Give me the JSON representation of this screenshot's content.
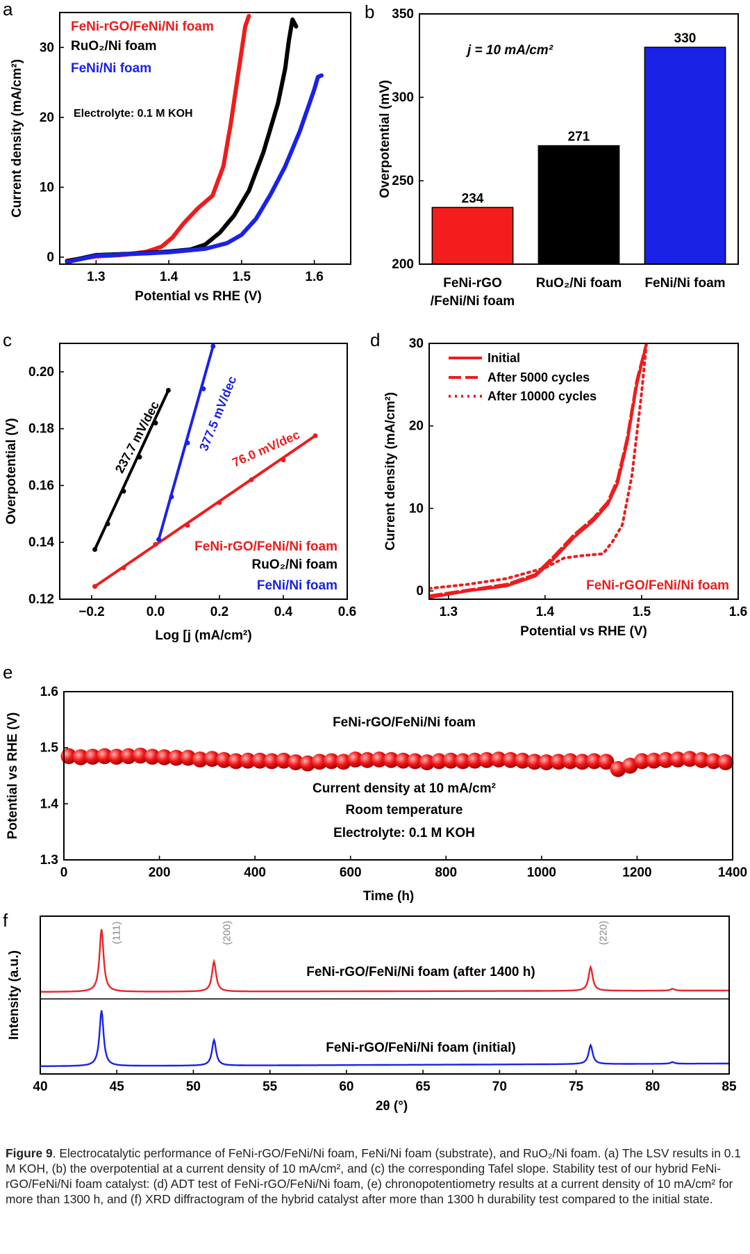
{
  "figure": {
    "caption_label": "Figure 9",
    "caption_text": ". Electrocatalytic performance of FeNi-rGO/FeNi/Ni foam, FeNi/Ni foam (substrate), and RuO₂/Ni foam. (a) The LSV results in 0.1 M KOH, (b) the overpotential at a current density of 10 mA/cm², and (c) the corresponding Tafel slope. Stability test of our hybrid FeNi-rGO/FeNi/Ni foam catalyst: (d) ADT test of FeNi-rGO/FeNi/Ni foam, (e) chronopotentiometry results at a current density of 10 mA/cm² for more than 1300 h, and (f) XRD diffractogram of the hybrid catalyst after more than 1300 h durability test compared to the initial state."
  },
  "chart_data": [
    {
      "panel": "a",
      "type": "line",
      "xlabel": "Potential vs RHE (V)",
      "ylabel": "Current density (mA/cm²)",
      "xlim": [
        1.25,
        1.65
      ],
      "ylim": [
        -1,
        35
      ],
      "xticks": [
        "1.3",
        "1.4",
        "1.5",
        "1.6"
      ],
      "yticks": [
        "0",
        "10",
        "20",
        "30"
      ],
      "annotations": [
        "Electrolyte: 0.1 M KOH"
      ],
      "legend_placement": "top-left",
      "series": [
        {
          "name": "FeNi-rGO/FeNi/Ni foam",
          "color": "#ee1c1c",
          "x": [
            1.26,
            1.3,
            1.34,
            1.37,
            1.39,
            1.405,
            1.42,
            1.44,
            1.46,
            1.475,
            1.485,
            1.495,
            1.505,
            1.51
          ],
          "y": [
            -0.5,
            0.1,
            0.35,
            0.8,
            1.5,
            2.8,
            4.8,
            7,
            8.8,
            13,
            19,
            26,
            33,
            34.5
          ]
        },
        {
          "name": "RuO₂/Ni foam",
          "color": "#000000",
          "x": [
            1.26,
            1.3,
            1.35,
            1.4,
            1.43,
            1.45,
            1.47,
            1.49,
            1.51,
            1.53,
            1.55,
            1.56,
            1.565,
            1.57,
            1.575
          ],
          "y": [
            -0.6,
            0.3,
            0.5,
            0.8,
            1.1,
            1.8,
            3.5,
            6,
            9.5,
            15,
            22,
            27,
            31,
            34,
            33
          ]
        },
        {
          "name": "FeNi/Ni foam",
          "color": "#1a22e6",
          "x": [
            1.26,
            1.3,
            1.4,
            1.45,
            1.48,
            1.5,
            1.52,
            1.54,
            1.56,
            1.58,
            1.59,
            1.6,
            1.605,
            1.61
          ],
          "y": [
            -0.7,
            0.2,
            0.7,
            1.2,
            2,
            3.2,
            5.5,
            9,
            13,
            18,
            21,
            24,
            25.8,
            26
          ]
        }
      ]
    },
    {
      "panel": "b",
      "type": "bar",
      "ylabel": "Overpotential (mV)",
      "ylim": [
        200,
        350
      ],
      "yticks": [
        "200",
        "250",
        "300",
        "350"
      ],
      "annotation": "j = 10 mA/cm²",
      "categories": [
        [
          "FeNi-rGO",
          "/FeNi/Ni foam"
        ],
        [
          "RuO₂/Ni foam"
        ],
        [
          "FeNi/Ni foam"
        ]
      ],
      "values": [
        234,
        271,
        330
      ],
      "value_labels": [
        "234",
        "271",
        "330"
      ],
      "colors": [
        "#f41d1d",
        "#000000",
        "#1a22e6"
      ]
    },
    {
      "panel": "c",
      "type": "scatter",
      "xlabel": "Log [j (mA/cm²)",
      "ylabel": "Overpotential (V)",
      "xlim": [
        -0.3,
        0.6
      ],
      "ylim": [
        0.12,
        0.21
      ],
      "xticks": [
        "−0.2",
        "0.0",
        "0.2",
        "0.4",
        "0.6"
      ],
      "yticks": [
        "0.12",
        "0.14",
        "0.16",
        "0.18",
        "0.20"
      ],
      "legend_placement": "bottom-right",
      "series": [
        {
          "name": "FeNi-rGO/FeNi/Ni foam",
          "color": "#ee1c1c",
          "slope_label": "76.0 mV/dec",
          "x": [
            -0.19,
            -0.1,
            0.0,
            0.1,
            0.2,
            0.3,
            0.4,
            0.5
          ],
          "y": [
            0.1245,
            0.131,
            0.1393,
            0.146,
            0.154,
            0.162,
            0.169,
            0.1775
          ]
        },
        {
          "name": "RuO₂/Ni foam",
          "color": "#000000",
          "slope_label": "237.7 mV/dec",
          "x": [
            -0.19,
            -0.15,
            -0.1,
            -0.05,
            0.0,
            0.04
          ],
          "y": [
            0.1375,
            0.1465,
            0.158,
            0.17,
            0.182,
            0.1935
          ]
        },
        {
          "name": "FeNi/Ni foam",
          "color": "#1a22e6",
          "slope_label": "377.5 mV/dec",
          "x": [
            0.01,
            0.05,
            0.1,
            0.15,
            0.18
          ],
          "y": [
            0.141,
            0.156,
            0.175,
            0.194,
            0.209
          ]
        }
      ]
    },
    {
      "panel": "d",
      "type": "line",
      "xlabel": "Potential vs RHE (V)",
      "ylabel": "Current density (mA/cm²)",
      "xlim": [
        1.28,
        1.6
      ],
      "ylim": [
        -1,
        30
      ],
      "xticks": [
        "1.3",
        "1.4",
        "1.5",
        "1.6"
      ],
      "yticks": [
        "0",
        "10",
        "20",
        "30"
      ],
      "annotations": [
        "FeNi-rGO/FeNi/Ni foam"
      ],
      "legend_placement": "top-left",
      "series": [
        {
          "name": "Initial",
          "style": "solid",
          "color": "#ee1c1c",
          "x": [
            1.28,
            1.32,
            1.36,
            1.39,
            1.41,
            1.43,
            1.45,
            1.465,
            1.475,
            1.485,
            1.495,
            1.505
          ],
          "y": [
            -0.8,
            0,
            0.6,
            1.8,
            4,
            6.5,
            8.5,
            10.5,
            13,
            18,
            25,
            30
          ]
        },
        {
          "name": "After 5000 cycles",
          "style": "dashed",
          "color": "#ee1c1c",
          "x": [
            1.28,
            1.32,
            1.36,
            1.39,
            1.41,
            1.43,
            1.45,
            1.465,
            1.475,
            1.485,
            1.495,
            1.505
          ],
          "y": [
            -0.6,
            0.1,
            0.8,
            2,
            4.3,
            6.8,
            8.8,
            10.8,
            13.5,
            18.5,
            25.5,
            30
          ]
        },
        {
          "name": "After 10000 cycles",
          "style": "dotted",
          "color": "#ee1c1c",
          "x": [
            1.28,
            1.32,
            1.36,
            1.4,
            1.42,
            1.44,
            1.46,
            1.47,
            1.48,
            1.49,
            1.5,
            1.505
          ],
          "y": [
            0.3,
            0.8,
            1.5,
            2.8,
            4,
            4.3,
            4.5,
            6,
            8,
            14,
            24,
            30
          ]
        }
      ]
    },
    {
      "panel": "e",
      "type": "scatter",
      "xlabel": "Time (h)",
      "ylabel": "Potential vs RHE (V)",
      "xlim": [
        0,
        1400
      ],
      "ylim": [
        1.3,
        1.6
      ],
      "xticks": [
        "0",
        "200",
        "400",
        "600",
        "800",
        "1000",
        "1200",
        "1400"
      ],
      "yticks": [
        "1.3",
        "1.4",
        "1.5",
        "1.6"
      ],
      "annotations": [
        "FeNi-rGO/FeNi/Ni foam",
        "Current density at 10 mA/cm²",
        "Room temperature",
        "Electrolyte: 0.1 M KOH"
      ],
      "series": [
        {
          "name": "FeNi-rGO/FeNi/Ni foam",
          "color": "#ee1c1c",
          "x": [
            0,
            25,
            50,
            75,
            100,
            125,
            150,
            175,
            200,
            225,
            250,
            275,
            300,
            325,
            350,
            375,
            400,
            425,
            450,
            475,
            500,
            525,
            550,
            575,
            600,
            625,
            650,
            675,
            700,
            725,
            750,
            775,
            800,
            825,
            850,
            875,
            900,
            925,
            950,
            975,
            1000,
            1025,
            1050,
            1075,
            1100,
            1125,
            1150,
            1175,
            1200,
            1225,
            1250,
            1275,
            1300,
            1325,
            1350,
            1375
          ],
          "y": [
            1.485,
            1.483,
            1.484,
            1.485,
            1.484,
            1.485,
            1.486,
            1.484,
            1.483,
            1.482,
            1.482,
            1.479,
            1.48,
            1.478,
            1.476,
            1.477,
            1.477,
            1.476,
            1.477,
            1.474,
            1.472,
            1.475,
            1.476,
            1.475,
            1.479,
            1.478,
            1.479,
            1.478,
            1.477,
            1.476,
            1.474,
            1.476,
            1.477,
            1.476,
            1.477,
            1.478,
            1.479,
            1.478,
            1.477,
            1.475,
            1.474,
            1.475,
            1.476,
            1.475,
            1.476,
            1.475,
            1.462,
            1.468,
            1.476,
            1.477,
            1.478,
            1.479,
            1.48,
            1.478,
            1.476,
            1.474
          ]
        }
      ]
    },
    {
      "panel": "f",
      "type": "line",
      "xlabel": "2θ (°)",
      "ylabel": "Intensity (a.u.)",
      "xlim": [
        40,
        85
      ],
      "xticks": [
        "40",
        "45",
        "50",
        "55",
        "60",
        "65",
        "70",
        "75",
        "80",
        "85"
      ],
      "peak_labels": [
        {
          "x": 44.2,
          "label": "(111)"
        },
        {
          "x": 51.4,
          "label": "(200)"
        },
        {
          "x": 76.0,
          "label": "(220)"
        }
      ],
      "series": [
        {
          "name": "FeNi-rGO/FeNi/Ni foam (after 1400 h)",
          "color": "#e8262a",
          "peaks": [
            {
              "x": 44.0,
              "height": 1.0
            },
            {
              "x": 51.35,
              "height": 0.48
            },
            {
              "x": 75.95,
              "height": 0.38
            },
            {
              "x": 81.3,
              "height": 0.03
            }
          ]
        },
        {
          "name": "FeNi-rGO/FeNi/Ni foam (initial)",
          "color": "#1a22e6",
          "peaks": [
            {
              "x": 44.0,
              "height": 1.0
            },
            {
              "x": 51.35,
              "height": 0.46
            },
            {
              "x": 75.95,
              "height": 0.34
            },
            {
              "x": 81.3,
              "height": 0.03
            }
          ]
        }
      ]
    }
  ]
}
